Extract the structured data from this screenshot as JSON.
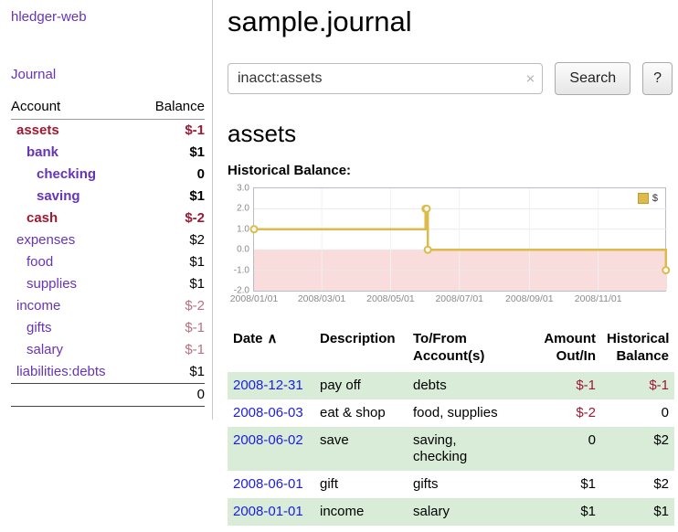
{
  "colors": {
    "link_purple": "#6633bb",
    "link_blue": "#1d1de0",
    "neg_strong": "#9e1932",
    "neg_soft": "#b9707f",
    "row_green": "#d8ecd8",
    "chart_line": "#dcba4c"
  },
  "sidebar": {
    "app_title": "hledger-web",
    "journal_link": "Journal",
    "account_header": "Account",
    "balance_header": "Balance",
    "accounts": [
      {
        "name": "assets",
        "balance": "$-1"
      },
      {
        "name": "bank",
        "balance": "$1"
      },
      {
        "name": "checking",
        "balance": "0"
      },
      {
        "name": "saving",
        "balance": "$1"
      },
      {
        "name": "cash",
        "balance": "$-2"
      },
      {
        "name": "expenses",
        "balance": "$2"
      },
      {
        "name": "food",
        "balance": "$1"
      },
      {
        "name": "supplies",
        "balance": "$1"
      },
      {
        "name": "income",
        "balance": "$-2"
      },
      {
        "name": "gifts",
        "balance": "$-1"
      },
      {
        "name": "salary",
        "balance": "$-1"
      },
      {
        "name": "liabilities:debts",
        "balance": "$1"
      }
    ],
    "total": "0"
  },
  "header": {
    "title": "sample.journal"
  },
  "search": {
    "value": "inacct:assets",
    "clear_icon": "×",
    "search_button": "Search",
    "help_button": "?"
  },
  "account_page": {
    "heading": "assets",
    "chart_label": "Historical Balance:"
  },
  "register": {
    "sort_indicator": "∧",
    "headers": [
      "Date",
      "Description",
      "To/From Account(s)",
      "Amount Out/In",
      "Historical Balance"
    ],
    "rows": [
      {
        "date": "2008-12-31",
        "description": "pay off",
        "accounts": "debts",
        "amount": "$-1",
        "balance": "$-1"
      },
      {
        "date": "2008-06-03",
        "description": "eat & shop",
        "accounts": "food, supplies",
        "amount": "$-2",
        "balance": "0"
      },
      {
        "date": "2008-06-02",
        "description": "save",
        "accounts": "saving,\nchecking",
        "amount": "0",
        "balance": "$2"
      },
      {
        "date": "2008-06-01",
        "description": "gift",
        "accounts": "gifts",
        "amount": "$1",
        "balance": "$2"
      },
      {
        "date": "2008-01-01",
        "description": "income",
        "accounts": "salary",
        "amount": "$1",
        "balance": "$1"
      }
    ]
  },
  "chart_data": {
    "type": "line",
    "title": "Historical Balance",
    "legend": {
      "label": "$",
      "position": "top-right"
    },
    "ylim": [
      -2,
      3
    ],
    "xlim_days": [
      0,
      366
    ],
    "y_ticks": [
      {
        "value": 3,
        "label": "3.0"
      },
      {
        "value": 2,
        "label": "2.0"
      },
      {
        "value": 1,
        "label": "1.0"
      },
      {
        "value": 0,
        "label": "0.0"
      },
      {
        "value": -1,
        "label": "-1.0"
      },
      {
        "value": -2,
        "label": "-2.0"
      }
    ],
    "x_ticks": [
      {
        "day": 0,
        "label": "2008/01/01"
      },
      {
        "day": 60,
        "label": "2008/03/01"
      },
      {
        "day": 121,
        "label": "2008/05/01"
      },
      {
        "day": 182,
        "label": "2008/07/01"
      },
      {
        "day": 244,
        "label": "2008/09/01"
      },
      {
        "day": 305,
        "label": "2008/11/01"
      }
    ],
    "series": [
      {
        "name": "$",
        "step": true,
        "points": [
          {
            "date": "2008-01-01",
            "day": 0,
            "value": 1
          },
          {
            "date": "2008-06-01",
            "day": 152,
            "value": 2
          },
          {
            "date": "2008-06-02",
            "day": 153,
            "value": 2
          },
          {
            "date": "2008-06-03",
            "day": 154,
            "value": 0
          },
          {
            "date": "2008-12-31",
            "day": 365,
            "value": -1
          }
        ]
      }
    ],
    "line_color": "#dcba4c",
    "marker_fill": "#fffdf2",
    "negative_region_color": "#f9dcdc",
    "grid": true
  }
}
